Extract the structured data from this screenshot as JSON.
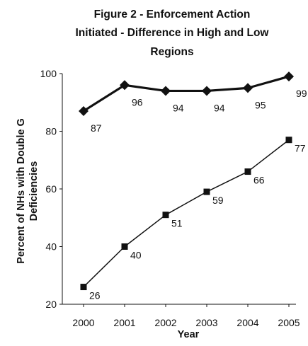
{
  "chart_data": {
    "type": "line",
    "title_lines": [
      "Figure 2 - Enforcement Action",
      "Initiated - Difference in High and Low",
      "Regions"
    ],
    "xlabel": "Year",
    "ylabel_lines": [
      "Percent of NHs with Double G",
      "Deficiencies"
    ],
    "x": [
      "2000",
      "2001",
      "2002",
      "2003",
      "2004",
      "2005"
    ],
    "ylim": [
      20,
      100
    ],
    "yticks": [
      20,
      40,
      60,
      80,
      100
    ],
    "grid": false,
    "legend": "none",
    "series": [
      {
        "marker": "diamond",
        "color": "#111111",
        "line_weight": "thick",
        "values": [
          87,
          96,
          94,
          94,
          95,
          99
        ],
        "labels": [
          "87",
          "96",
          "94",
          "94",
          "95",
          "99"
        ]
      },
      {
        "marker": "square",
        "color": "#111111",
        "line_weight": "thin",
        "values": [
          26,
          40,
          51,
          59,
          66,
          77
        ],
        "labels": [
          "26",
          "40",
          "51",
          "59",
          "66",
          "77"
        ]
      }
    ]
  }
}
